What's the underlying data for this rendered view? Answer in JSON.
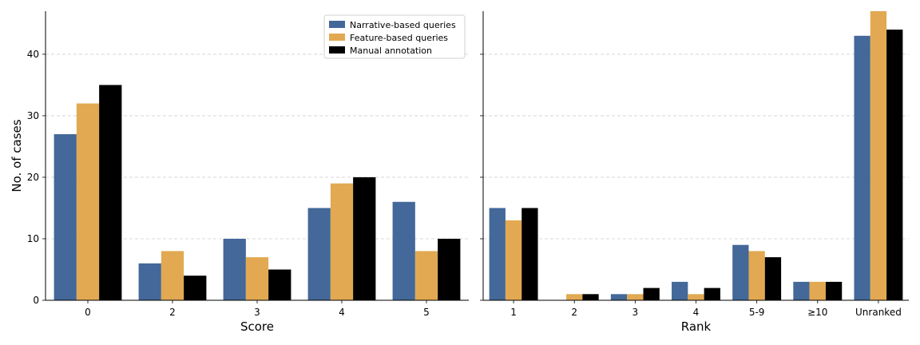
{
  "chart_data": [
    {
      "type": "bar",
      "xlabel": "Score",
      "ylabel": "No. of cases",
      "categories": [
        "0",
        "2",
        "3",
        "4",
        "5"
      ],
      "ylim": [
        0,
        47
      ],
      "yticks": [
        0,
        10,
        20,
        30,
        40
      ],
      "grid": "y-dashed",
      "legend_position": "top-right",
      "series": [
        {
          "name": "Narrative-based queries",
          "color": "#436899",
          "values": [
            27,
            6,
            10,
            15,
            16
          ]
        },
        {
          "name": "Feature-based queries",
          "color": "#e2a952",
          "values": [
            32,
            8,
            7,
            19,
            8
          ]
        },
        {
          "name": "Manual annotation",
          "color": "#000000",
          "values": [
            35,
            4,
            5,
            20,
            10
          ]
        }
      ]
    },
    {
      "type": "bar",
      "xlabel": "Rank",
      "ylabel": "",
      "categories": [
        "1",
        "2",
        "3",
        "4",
        "5-9",
        "≥10",
        "Unranked"
      ],
      "ylim": [
        0,
        47
      ],
      "yticks": [
        0,
        10,
        20,
        30,
        40
      ],
      "grid": "y-dashed",
      "series": [
        {
          "name": "Narrative-based queries",
          "color": "#436899",
          "values": [
            15,
            0,
            1,
            3,
            9,
            3,
            43
          ]
        },
        {
          "name": "Feature-based queries",
          "color": "#e2a952",
          "values": [
            13,
            1,
            1,
            1,
            8,
            3,
            47
          ]
        },
        {
          "name": "Manual annotation",
          "color": "#000000",
          "values": [
            15,
            1,
            2,
            2,
            7,
            3,
            44
          ]
        }
      ]
    }
  ]
}
